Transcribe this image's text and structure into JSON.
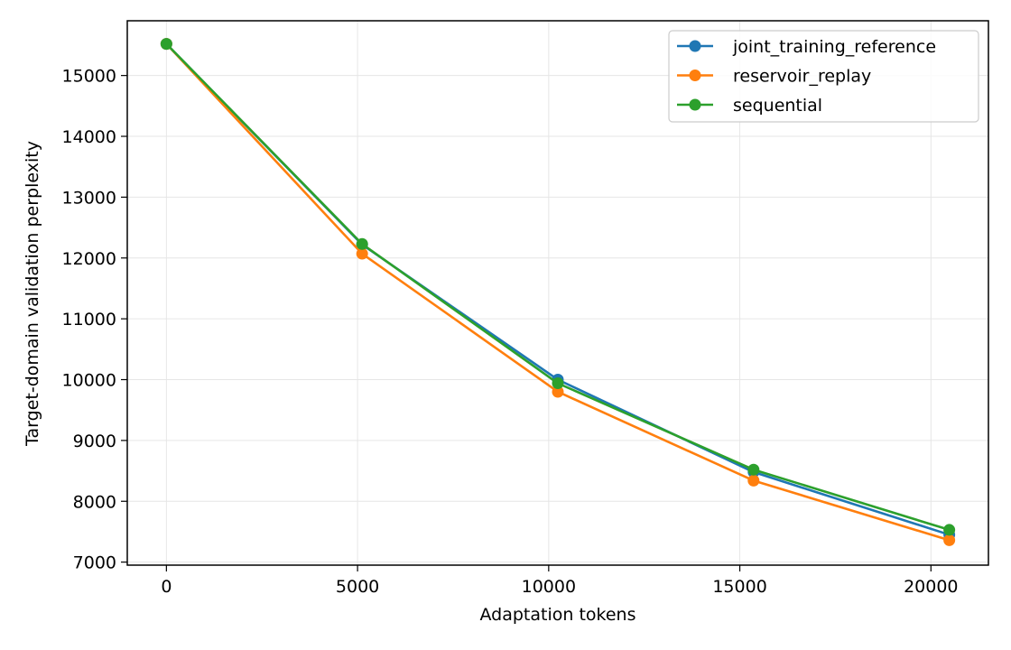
{
  "chart_data": {
    "type": "line",
    "title": "",
    "xlabel": "Adaptation tokens",
    "ylabel": "Target-domain validation perplexity",
    "xlim": [
      -1024,
      21504
    ],
    "ylim": [
      6950,
      15900
    ],
    "xticks": [
      0,
      5000,
      10000,
      15000,
      20000
    ],
    "yticks": [
      7000,
      8000,
      9000,
      10000,
      11000,
      12000,
      13000,
      14000,
      15000
    ],
    "grid": true,
    "legend_position": "top-right",
    "x": [
      0,
      5120,
      10240,
      15360,
      20480
    ],
    "series": [
      {
        "name": "joint_training_reference",
        "color": "#1f77b4",
        "values": [
          15520,
          12220,
          10000,
          8480,
          7450
        ]
      },
      {
        "name": "reservoir_replay",
        "color": "#ff7f0e",
        "values": [
          15520,
          12070,
          9800,
          8340,
          7360
        ]
      },
      {
        "name": "sequential",
        "color": "#2ca02c",
        "values": [
          15520,
          12230,
          9940,
          8520,
          7530
        ]
      }
    ]
  }
}
